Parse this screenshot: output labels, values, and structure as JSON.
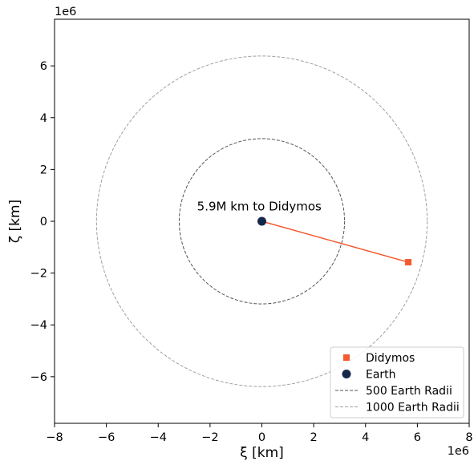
{
  "chart_data": {
    "type": "scatter",
    "xlabel": "ξ [km]",
    "ylabel": "ζ [km]",
    "x_offset_label": "1e6",
    "y_offset_label": "1e6",
    "xlim": [
      -8.0,
      8.0
    ],
    "ylim": [
      -7.8,
      7.8
    ],
    "x_ticks": [
      -8,
      -6,
      -4,
      -2,
      0,
      2,
      4,
      6,
      8
    ],
    "x_tick_labels": [
      "−8",
      "−6",
      "−4",
      "−2",
      "0",
      "2",
      "4",
      "6",
      "8"
    ],
    "y_ticks": [
      -6,
      -4,
      -2,
      0,
      2,
      4,
      6
    ],
    "y_tick_labels": [
      "−6",
      "−4",
      "−2",
      "0",
      "2",
      "4",
      "6"
    ],
    "grid": false,
    "legend_position": "bottom-right",
    "annotation": {
      "text": "5.9M km to Didymos",
      "x": -0.1,
      "y": 0.42
    },
    "series": [
      {
        "name": "Didymos",
        "kind": "marker",
        "marker": "square",
        "color": "#f4592f",
        "x": 5.65,
        "y": -1.58
      },
      {
        "name": "Earth",
        "kind": "marker",
        "marker": "circle",
        "color": "#14284a",
        "x": 0,
        "y": 0
      },
      {
        "name": "500 Earth Radii",
        "kind": "circle",
        "linestyle": "dashed",
        "color": "#555555",
        "radius": 3.19
      },
      {
        "name": "1000 Earth Radii",
        "kind": "circle",
        "linestyle": "dashed",
        "color": "#a0a0a0",
        "radius": 6.38
      }
    ],
    "connector": {
      "from": [
        0,
        0
      ],
      "to": [
        5.65,
        -1.58
      ],
      "color": "#f4592f"
    }
  }
}
